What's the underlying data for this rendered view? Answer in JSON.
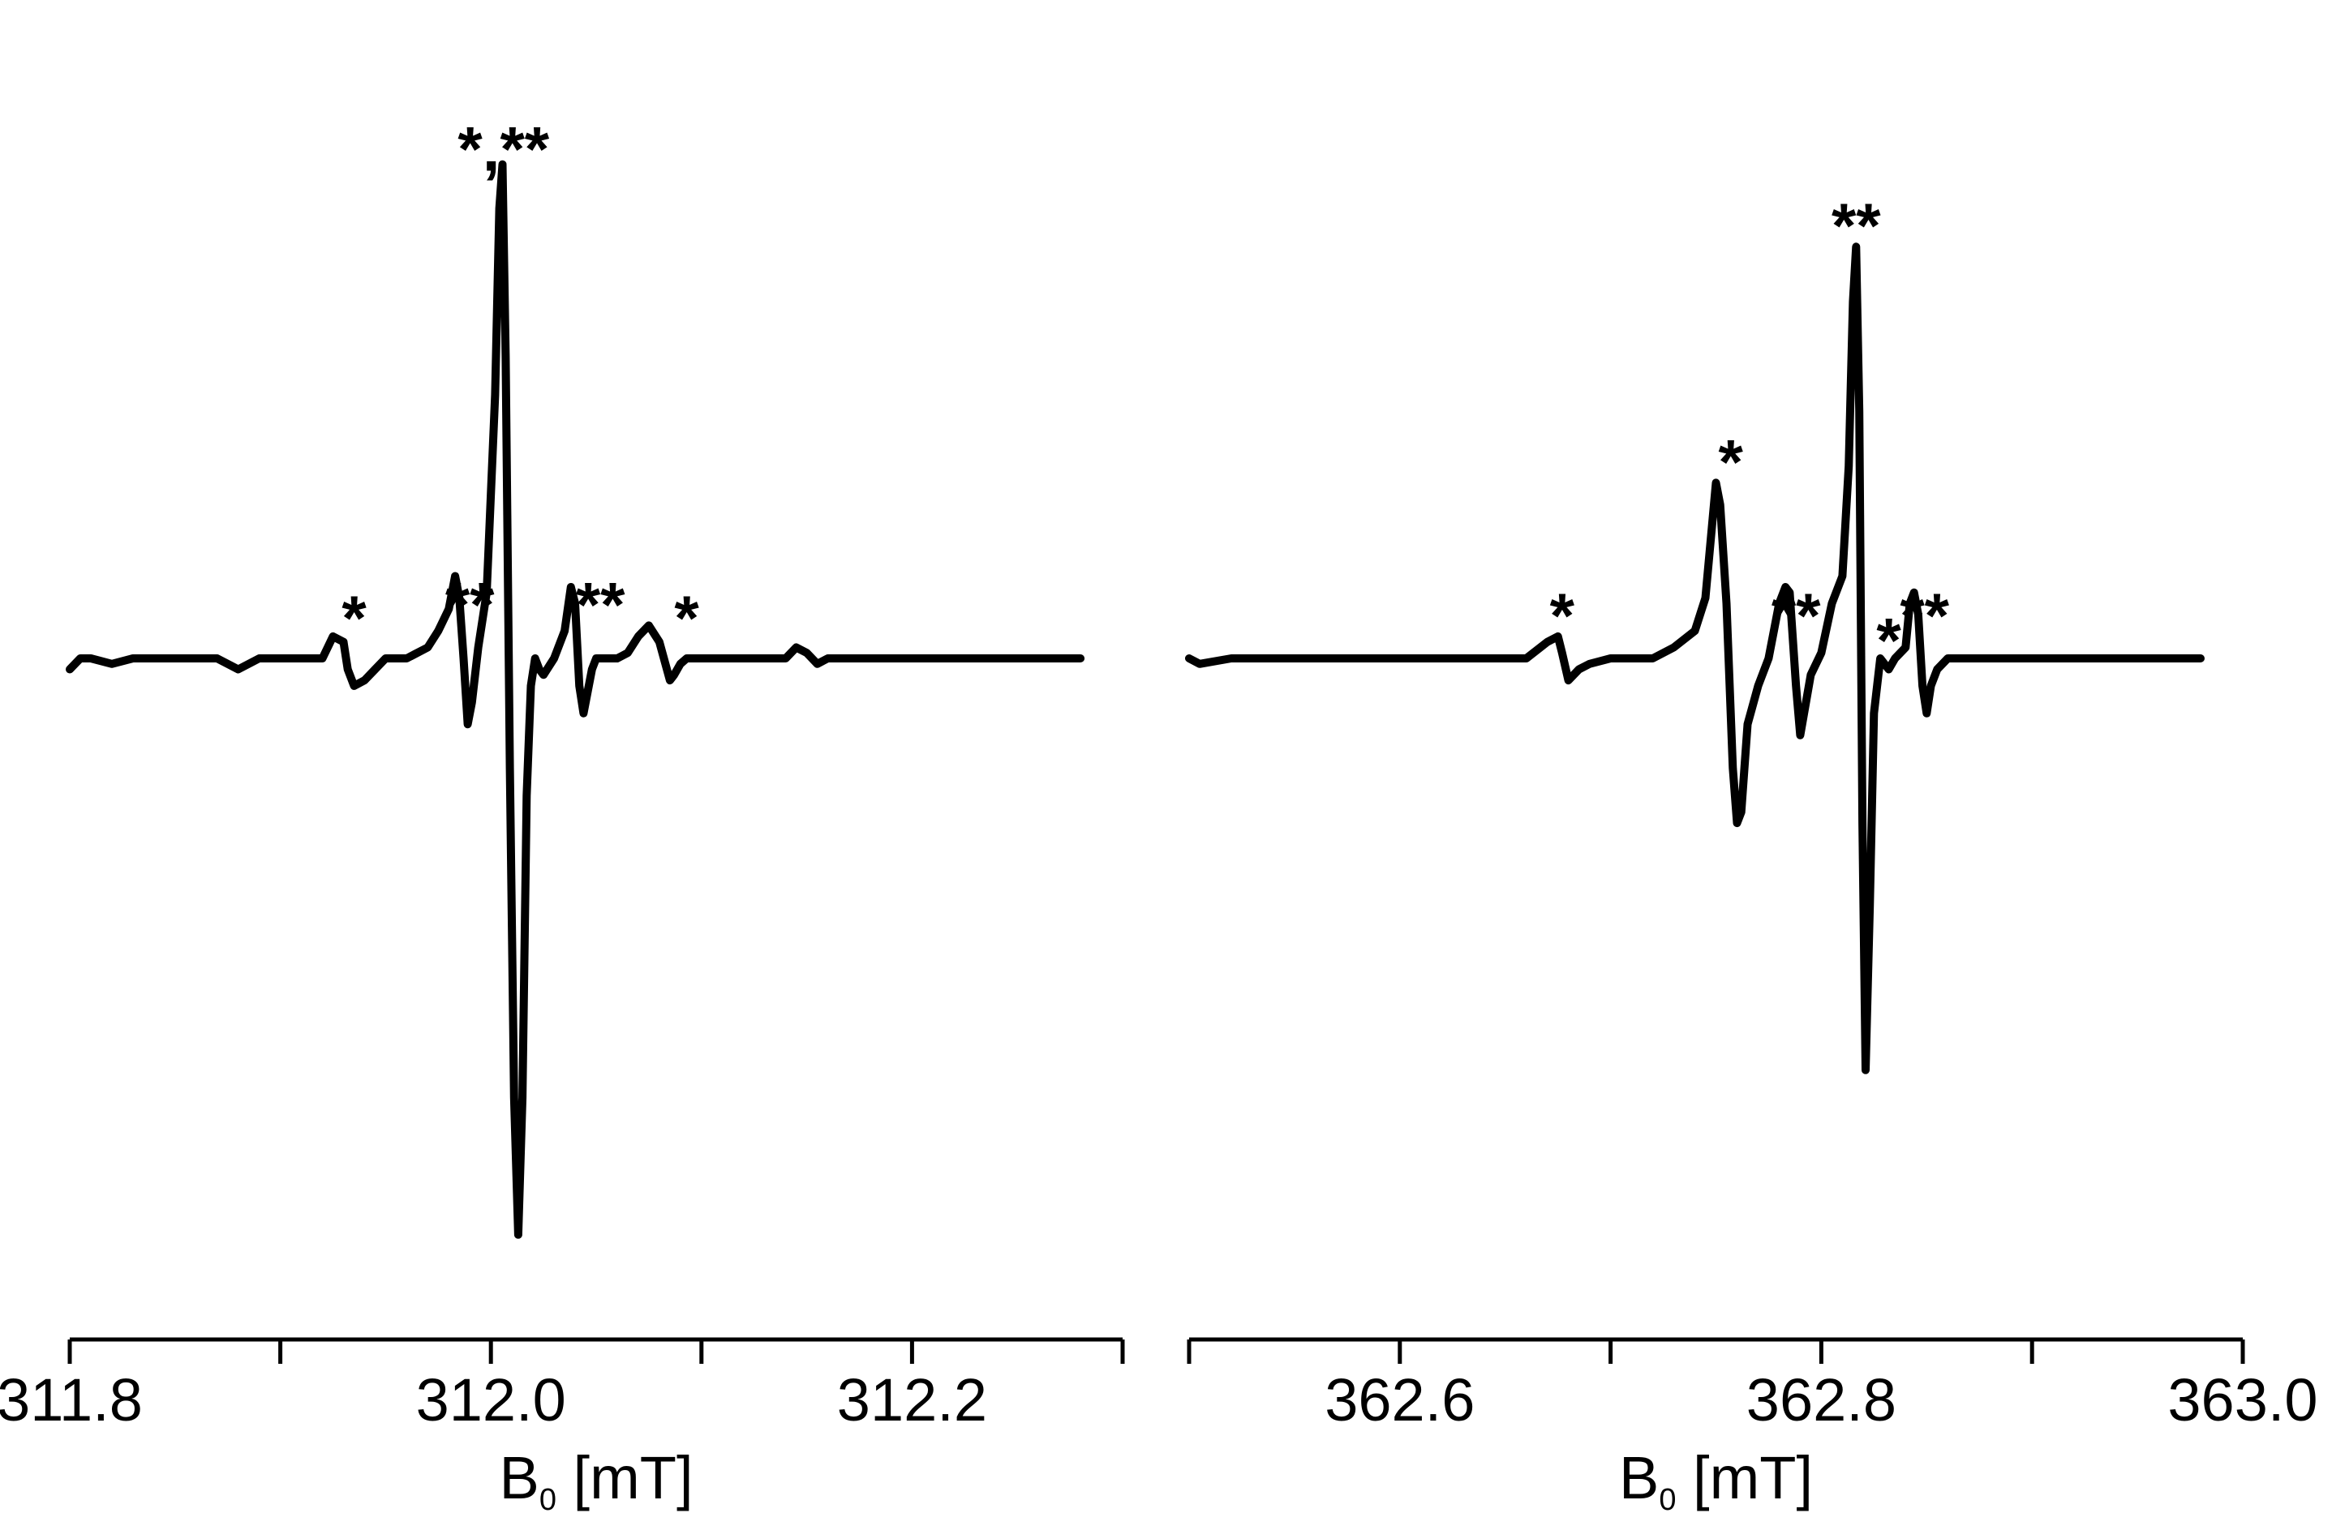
{
  "chart_data": [
    {
      "type": "line",
      "xlabel": {
        "main": "B",
        "sub": "0",
        "unit": " [mT]"
      },
      "xlim": [
        311.8,
        312.3
      ],
      "ylim": [
        -1.1,
        1.0
      ],
      "tick_values": [
        311.8,
        311.9,
        312.0,
        312.1,
        312.2,
        312.3
      ],
      "tick_labels": [
        {
          "x": 311.8,
          "text": "311.8"
        },
        {
          "x": 312.0,
          "text": "312.0"
        },
        {
          "x": 312.2,
          "text": "312.2"
        }
      ],
      "series": [
        {
          "x": [
            311.8,
            311.805,
            311.81,
            311.82,
            311.83,
            311.84,
            311.85,
            311.86,
            311.87,
            311.88,
            311.89,
            311.9,
            311.91,
            311.92,
            311.925,
            311.93,
            311.932,
            311.935,
            311.94,
            311.945,
            311.95,
            311.96,
            311.97,
            311.975,
            311.98,
            311.983,
            311.985,
            311.987,
            311.989,
            311.991,
            311.994,
            311.998,
            312.0,
            312.002,
            312.004,
            312.0055,
            312.007,
            312.009,
            312.011,
            312.013,
            312.015,
            312.017,
            312.019,
            312.021,
            312.023,
            312.025,
            312.03,
            312.035,
            312.038,
            312.04,
            312.042,
            312.044,
            312.046,
            312.048,
            312.05,
            312.053,
            312.056,
            312.06,
            312.065,
            312.07,
            312.075,
            312.08,
            312.085,
            312.087,
            312.09,
            312.093,
            312.095,
            312.1,
            312.11,
            312.12,
            312.13,
            312.14,
            312.145,
            312.15,
            312.155,
            312.16,
            312.17,
            312.18,
            312.19,
            312.2,
            312.21,
            312.22,
            312.23,
            312.24,
            312.25,
            312.26,
            312.27,
            312.28
          ],
          "y": [
            -0.02,
            0.0,
            0.0,
            -0.01,
            0.0,
            0.0,
            0.0,
            0.0,
            0.0,
            -0.02,
            0.0,
            0.0,
            0.0,
            0.0,
            0.04,
            0.03,
            -0.02,
            -0.05,
            -0.04,
            -0.02,
            0.0,
            0.0,
            0.02,
            0.05,
            0.09,
            0.15,
            0.11,
            0.0,
            -0.12,
            -0.08,
            0.02,
            0.12,
            0.3,
            0.48,
            0.82,
            0.9,
            0.55,
            -0.2,
            -0.8,
            -1.05,
            -0.8,
            -0.25,
            -0.05,
            0.0,
            -0.02,
            -0.03,
            0.0,
            0.05,
            0.13,
            0.1,
            -0.05,
            -0.1,
            -0.06,
            -0.02,
            0.0,
            0.0,
            0.0,
            0.0,
            0.01,
            0.04,
            0.06,
            0.03,
            -0.04,
            -0.03,
            -0.01,
            0.0,
            0.0,
            0.0,
            0.0,
            0.0,
            0.0,
            0.0,
            0.02,
            0.01,
            -0.01,
            0.0,
            0.0,
            0.0,
            0.0,
            0.0,
            0.0,
            0.0,
            0.0,
            0.0,
            0.0,
            0.0,
            0.0,
            0.0
          ]
        }
      ],
      "annotations": [
        {
          "x": 311.935,
          "y": 0.075,
          "text": "*"
        },
        {
          "x": 311.99,
          "y": 0.1,
          "text": "**"
        },
        {
          "x": 312.006,
          "y": 0.93,
          "text": "*,**"
        },
        {
          "x": 312.052,
          "y": 0.1,
          "text": "**"
        },
        {
          "x": 312.093,
          "y": 0.075,
          "text": "*"
        }
      ]
    },
    {
      "type": "line",
      "xlabel": {
        "main": "B",
        "sub": "0",
        "unit": " [mT]"
      },
      "xlim": [
        362.5,
        363.0
      ],
      "ylim": [
        -1.1,
        1.0
      ],
      "tick_values": [
        362.5,
        362.6,
        362.7,
        362.8,
        362.9,
        363.0
      ],
      "tick_labels": [
        {
          "x": 362.6,
          "text": "362.6"
        },
        {
          "x": 362.8,
          "text": "362.8"
        },
        {
          "x": 363.0,
          "text": "363.0"
        }
      ],
      "series": [
        {
          "x": [
            362.5,
            362.505,
            362.52,
            362.54,
            362.56,
            362.58,
            362.6,
            362.62,
            362.64,
            362.66,
            362.67,
            362.675,
            362.677,
            362.68,
            362.685,
            362.69,
            362.7,
            362.71,
            362.72,
            362.73,
            362.74,
            362.745,
            362.75,
            362.752,
            362.755,
            362.758,
            362.76,
            362.762,
            362.765,
            362.77,
            362.775,
            362.78,
            362.783,
            362.785,
            362.788,
            362.79,
            362.795,
            362.8,
            362.805,
            362.81,
            362.813,
            362.815,
            362.8165,
            362.818,
            362.8195,
            362.821,
            362.823,
            362.825,
            362.828,
            362.832,
            362.835,
            362.84,
            362.842,
            362.844,
            362.846,
            362.848,
            362.85,
            362.852,
            362.855,
            362.86,
            362.87,
            362.88,
            362.89,
            362.9,
            362.91,
            362.92,
            362.93,
            362.94,
            362.95,
            362.96,
            362.97,
            362.98
          ],
          "y": [
            0.0,
            -0.01,
            0.0,
            0.0,
            0.0,
            0.0,
            0.0,
            0.0,
            0.0,
            0.0,
            0.03,
            0.04,
            0.01,
            -0.04,
            -0.02,
            -0.01,
            0.0,
            0.0,
            0.0,
            0.02,
            0.05,
            0.11,
            0.32,
            0.28,
            0.1,
            -0.2,
            -0.3,
            -0.28,
            -0.12,
            -0.05,
            0.0,
            0.1,
            0.13,
            0.12,
            -0.05,
            -0.14,
            -0.03,
            0.01,
            0.1,
            0.15,
            0.35,
            0.65,
            0.75,
            0.45,
            -0.3,
            -0.75,
            -0.45,
            -0.1,
            0.0,
            -0.02,
            0.0,
            0.02,
            0.1,
            0.12,
            0.08,
            -0.05,
            -0.1,
            -0.05,
            -0.02,
            0.0,
            0.0,
            0.0,
            0.0,
            0.0,
            0.0,
            0.0,
            0.0,
            0.0,
            0.0,
            0.0,
            0.0,
            0.0
          ]
        }
      ],
      "annotations": [
        {
          "x": 362.677,
          "y": 0.08,
          "text": "*"
        },
        {
          "x": 362.757,
          "y": 0.36,
          "text": "*"
        },
        {
          "x": 362.788,
          "y": 0.08,
          "text": "**"
        },
        {
          "x": 362.8165,
          "y": 0.79,
          "text": "**"
        },
        {
          "x": 362.832,
          "y": 0.035,
          "text": "*"
        },
        {
          "x": 362.849,
          "y": 0.08,
          "text": "**"
        }
      ]
    }
  ]
}
